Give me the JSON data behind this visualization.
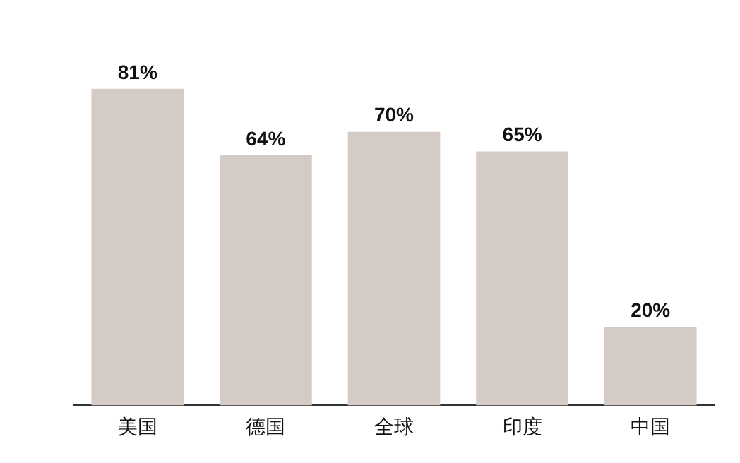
{
  "chart_data": {
    "type": "bar",
    "categories": [
      "美国",
      "德国",
      "全球",
      "印度",
      "中国"
    ],
    "values": [
      81,
      64,
      70,
      65,
      20
    ],
    "value_labels": [
      "81%",
      "64%",
      "70%",
      "65%",
      "20%"
    ],
    "color": "#d5cbc6",
    "relative": false,
    "grid": false,
    "legend": false
  }
}
